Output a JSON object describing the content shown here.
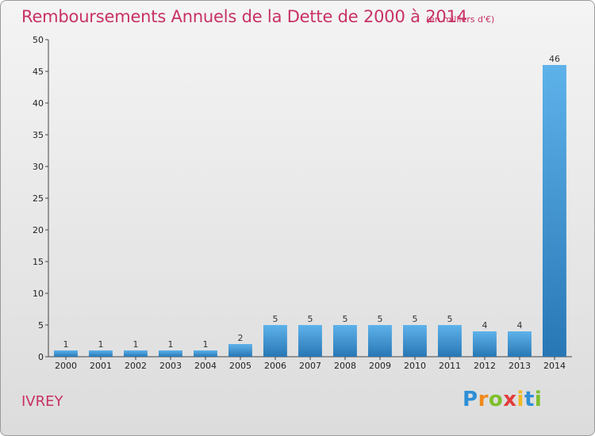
{
  "header": {
    "title": "Remboursements Annuels de la Dette de 2000 à 2014",
    "unit": "(en milliers d'€)"
  },
  "footer": {
    "city": "IVREY",
    "logo": "Proxiti"
  },
  "colors": {
    "title": "#c83264",
    "bar_light": "#5aaee8",
    "bar_dark": "#2a7ab8"
  },
  "chart_data": {
    "type": "bar",
    "categories": [
      "2000",
      "2001",
      "2002",
      "2003",
      "2004",
      "2005",
      "2006",
      "2007",
      "2008",
      "2009",
      "2010",
      "2011",
      "2012",
      "2013",
      "2014"
    ],
    "values": [
      1,
      1,
      1,
      1,
      1,
      2,
      5,
      5,
      5,
      5,
      5,
      5,
      4,
      4,
      46
    ],
    "ylim": [
      0,
      50
    ],
    "yticks": [
      0,
      5,
      10,
      15,
      20,
      25,
      30,
      35,
      40,
      45,
      50
    ],
    "grid": false,
    "data_labels": true
  }
}
